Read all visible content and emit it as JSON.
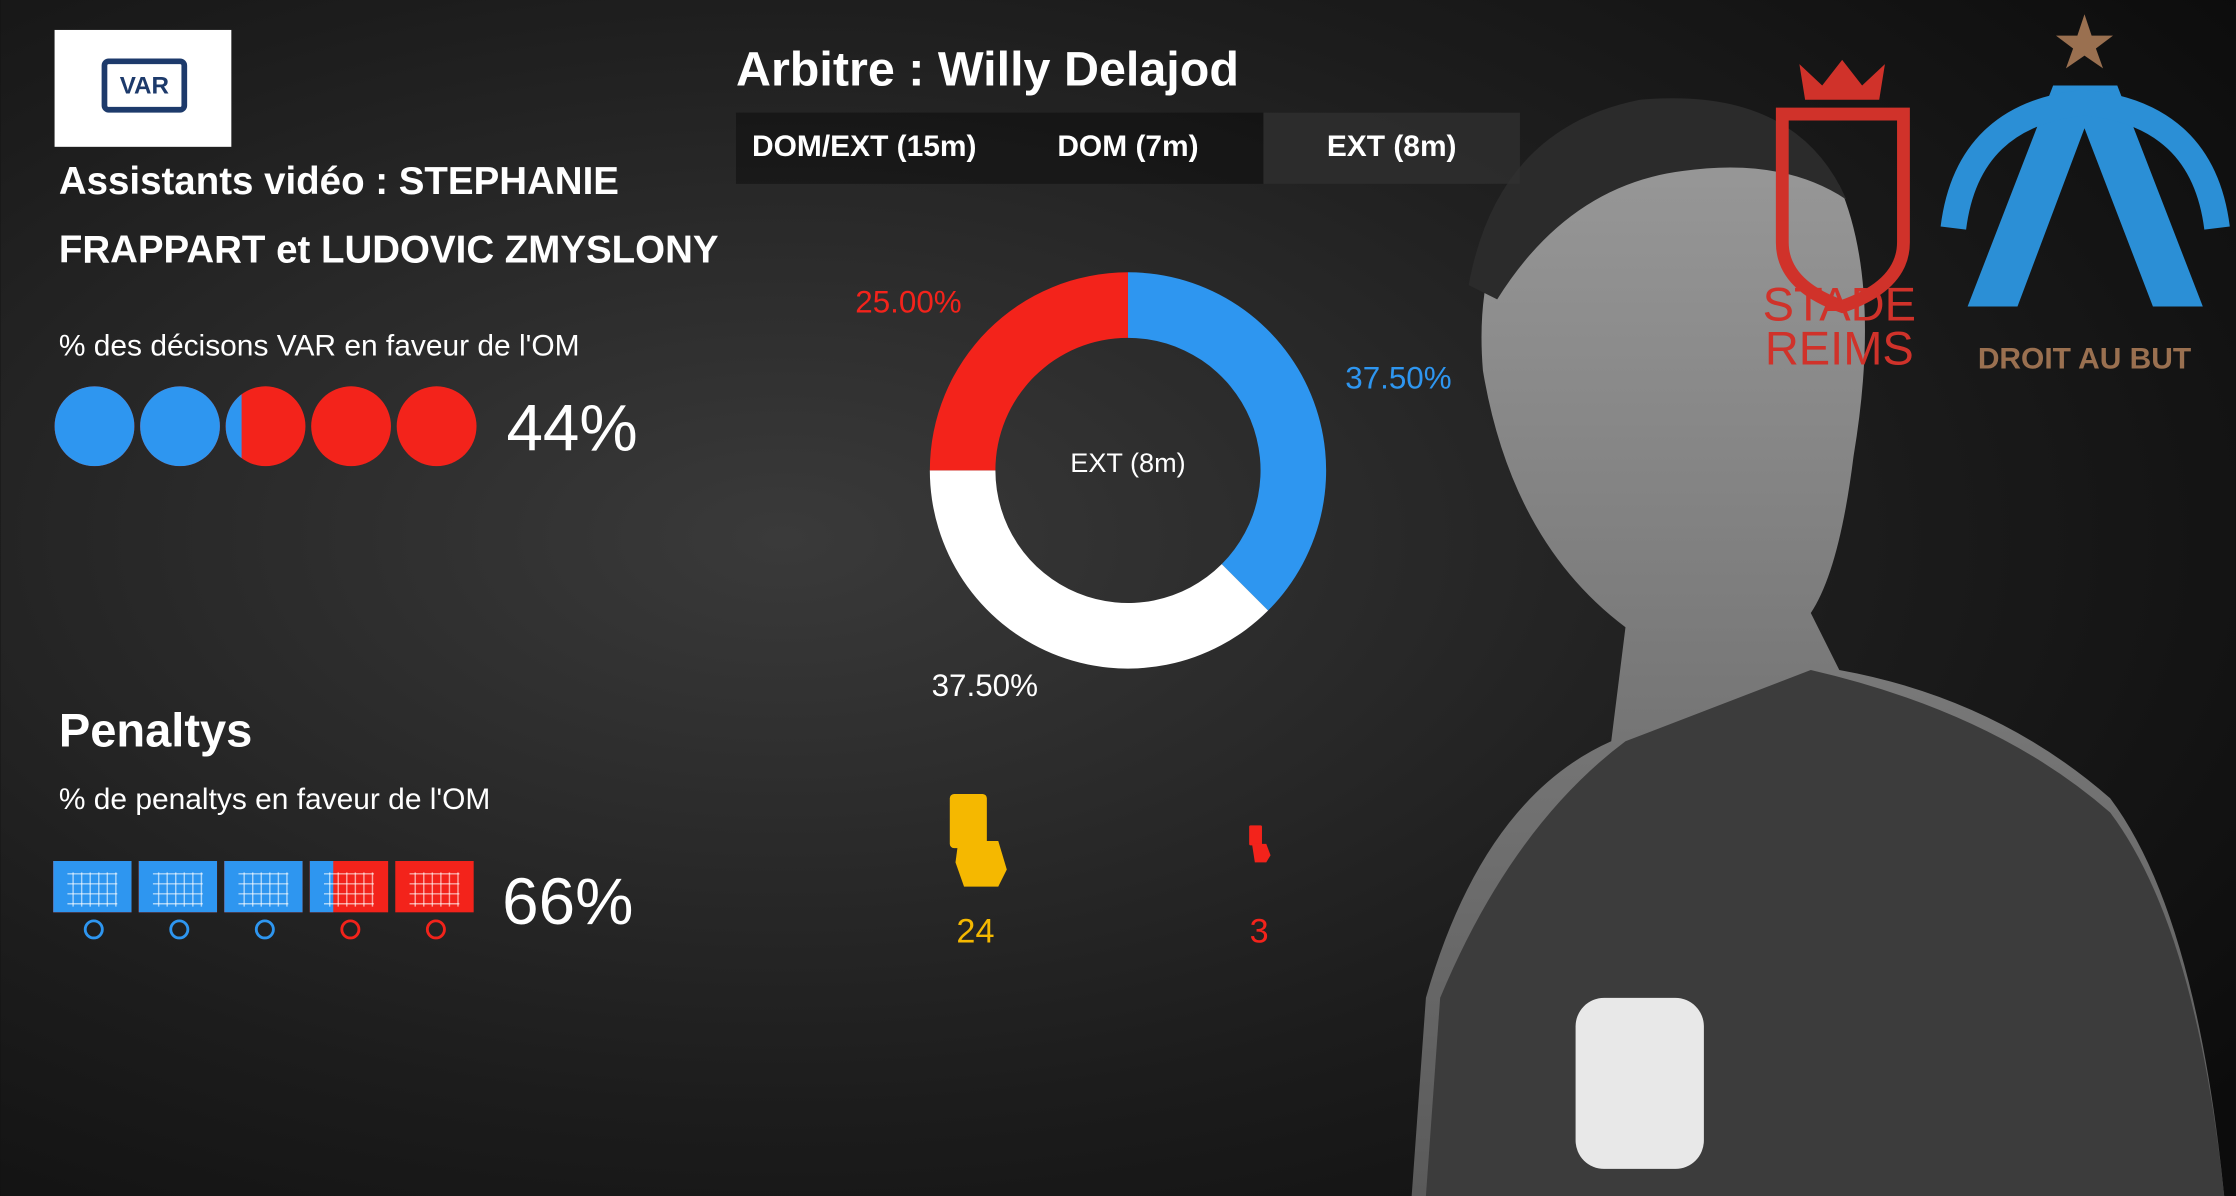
{
  "var_logo": "VAR",
  "assistants": [
    "Assistants vidéo : STEPHANIE",
    "FRAPPART et LUDOVIC ZMYSLONY"
  ],
  "var_stat": {
    "label": "%  des décisons VAR en faveur de l'OM",
    "value": 44,
    "value_label": "44%",
    "colors": [
      "#2e96f0",
      "#f3231b"
    ]
  },
  "penalties": {
    "title": "Penaltys",
    "label": "%  de penaltys en faveur de l'OM",
    "value": 66,
    "value_label": "66%",
    "colors": [
      "#2e96f0",
      "#f3231b"
    ]
  },
  "referee": "Arbitre : Willy Delajod",
  "tabs": [
    "DOM/EXT (15m)",
    "DOM (7m)",
    "EXT (8m)"
  ],
  "chart_data": {
    "type": "donut",
    "center_label": "EXT (8m)",
    "values": [
      37.5,
      37.5,
      25
    ],
    "value_labels": [
      "37.50%",
      "37.50%",
      "25.00%"
    ],
    "colors": [
      "#2e96f0",
      "#ffffff",
      "#f3231b"
    ],
    "label_colors": [
      "#2e96f0",
      "#ffffff",
      "#f3231b"
    ]
  },
  "cards": {
    "yellow": 24,
    "red": 3,
    "colors": [
      "#f5b800",
      "#f3231b"
    ]
  },
  "logos": {
    "reims": [
      "STADE",
      "REIMS"
    ],
    "om": "DROIT AU BUT"
  }
}
